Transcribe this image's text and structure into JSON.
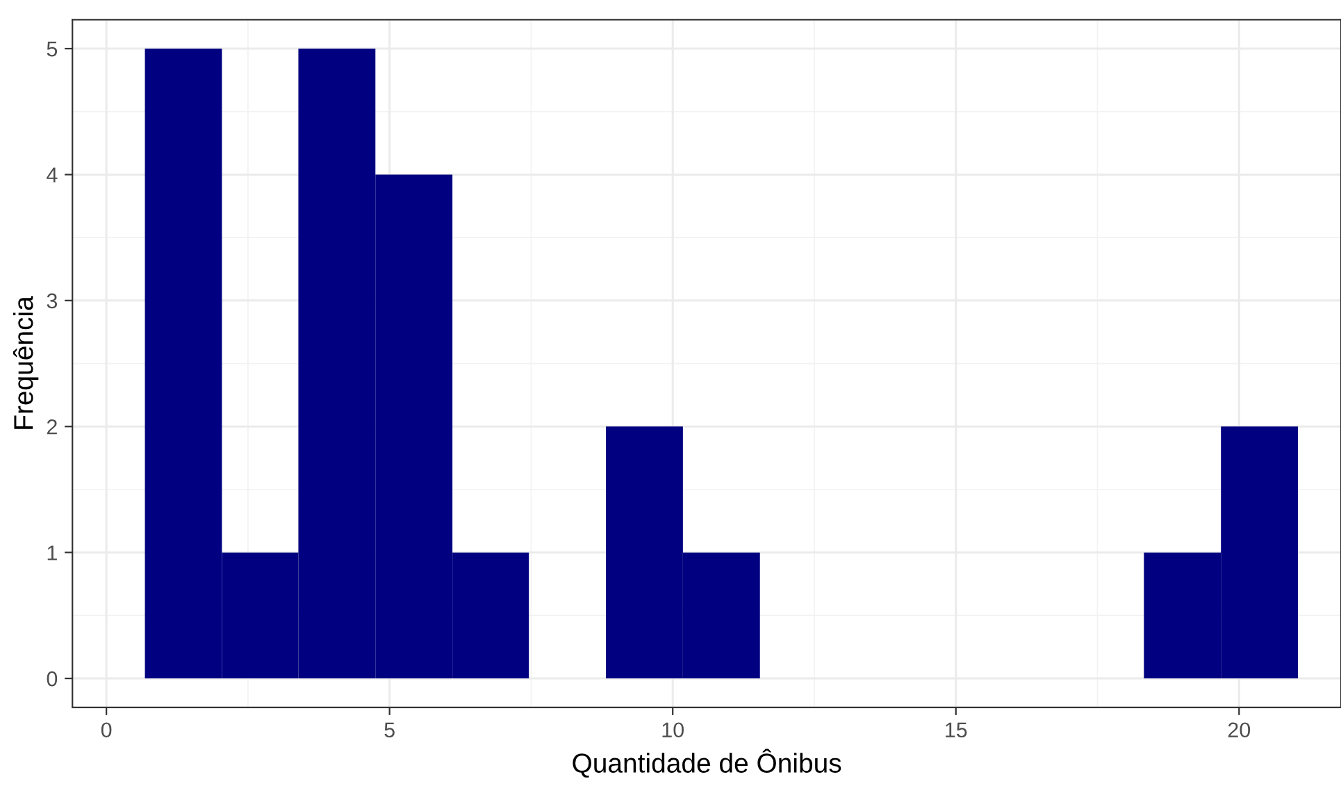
{
  "chart_data": {
    "type": "histogram",
    "xlabel": "Quantidade de Ônibus",
    "ylabel": "Frequência",
    "bins": [
      0.68,
      2.04,
      3.39,
      4.75,
      6.11,
      7.46,
      8.82,
      10.18,
      11.54,
      18.32,
      19.68,
      21.04
    ],
    "values": [
      5,
      1,
      5,
      4,
      1,
      0,
      2,
      1,
      0,
      1,
      2
    ],
    "color": "#000080",
    "xlim": [
      -0.6,
      21.8
    ],
    "xticks": [
      0,
      5,
      10,
      15,
      20
    ],
    "ylim": [
      -0.23,
      5.23
    ],
    "yticks": [
      0,
      1,
      2,
      3,
      4,
      5
    ],
    "grid": true
  }
}
